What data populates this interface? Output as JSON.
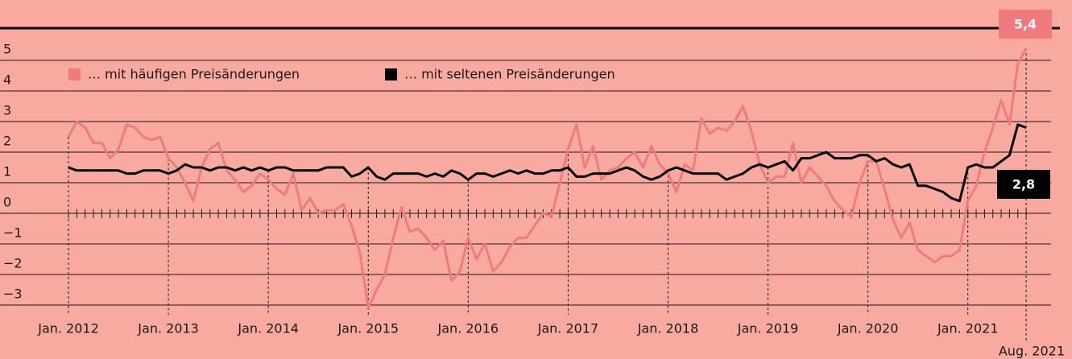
{
  "chart_data": {
    "type": "line",
    "x": [
      "2012-01",
      "2012-02",
      "2012-03",
      "2012-04",
      "2012-05",
      "2012-06",
      "2012-07",
      "2012-08",
      "2012-09",
      "2012-10",
      "2012-11",
      "2012-12",
      "2013-01",
      "2013-02",
      "2013-03",
      "2013-04",
      "2013-05",
      "2013-06",
      "2013-07",
      "2013-08",
      "2013-09",
      "2013-10",
      "2013-11",
      "2013-12",
      "2014-01",
      "2014-02",
      "2014-03",
      "2014-04",
      "2014-05",
      "2014-06",
      "2014-07",
      "2014-08",
      "2014-09",
      "2014-10",
      "2014-11",
      "2014-12",
      "2015-01",
      "2015-02",
      "2015-03",
      "2015-04",
      "2015-05",
      "2015-06",
      "2015-07",
      "2015-08",
      "2015-09",
      "2015-10",
      "2015-11",
      "2015-12",
      "2016-01",
      "2016-02",
      "2016-03",
      "2016-04",
      "2016-05",
      "2016-06",
      "2016-07",
      "2016-08",
      "2016-09",
      "2016-10",
      "2016-11",
      "2016-12",
      "2017-01",
      "2017-02",
      "2017-03",
      "2017-04",
      "2017-05",
      "2017-06",
      "2017-07",
      "2017-08",
      "2017-09",
      "2017-10",
      "2017-11",
      "2017-12",
      "2018-01",
      "2018-02",
      "2018-03",
      "2018-04",
      "2018-05",
      "2018-06",
      "2018-07",
      "2018-08",
      "2018-09",
      "2018-10",
      "2018-11",
      "2018-12",
      "2019-01",
      "2019-02",
      "2019-03",
      "2019-04",
      "2019-05",
      "2019-06",
      "2019-07",
      "2019-08",
      "2019-09",
      "2019-10",
      "2019-11",
      "2019-12",
      "2020-01",
      "2020-02",
      "2020-03",
      "2020-04",
      "2020-05",
      "2020-06",
      "2020-07",
      "2020-08",
      "2020-09",
      "2020-10",
      "2020-11",
      "2020-12",
      "2021-01",
      "2021-02",
      "2021-03",
      "2021-04",
      "2021-05",
      "2021-06",
      "2021-07",
      "2021-08"
    ],
    "series": [
      {
        "name": "… mit häufigen Preisänderungen",
        "color": "#f07b7f",
        "values": [
          2.5,
          3.0,
          2.8,
          2.3,
          2.3,
          1.8,
          2.1,
          2.9,
          2.8,
          2.5,
          2.4,
          2.5,
          1.8,
          1.5,
          1.0,
          0.4,
          1.5,
          2.1,
          2.3,
          1.4,
          1.1,
          0.7,
          0.9,
          1.3,
          1.1,
          0.8,
          0.6,
          1.3,
          0.1,
          0.5,
          0.0,
          0.1,
          0.1,
          0.3,
          -0.4,
          -1.3,
          -3.1,
          -2.5,
          -2.0,
          -0.8,
          0.2,
          -0.6,
          -0.5,
          -0.8,
          -1.2,
          -0.9,
          -2.2,
          -1.9,
          -0.8,
          -1.5,
          -1.0,
          -1.9,
          -1.6,
          -1.1,
          -0.8,
          -0.8,
          -0.4,
          0.0,
          -0.1,
          1.0,
          2.1,
          2.9,
          1.5,
          2.2,
          1.1,
          1.4,
          1.5,
          1.8,
          2.0,
          1.5,
          2.2,
          1.6,
          1.3,
          0.7,
          1.6,
          1.4,
          3.1,
          2.6,
          2.8,
          2.7,
          3.0,
          3.5,
          2.7,
          1.6,
          1.0,
          1.2,
          1.2,
          2.3,
          1.0,
          1.5,
          1.2,
          0.9,
          0.4,
          0.1,
          -0.1,
          1.0,
          1.7,
          1.7,
          0.8,
          -0.2,
          -0.8,
          -0.3,
          -1.2,
          -1.4,
          -1.6,
          -1.4,
          -1.4,
          -1.2,
          0.4,
          0.9,
          2.0,
          2.8,
          3.7,
          2.9,
          4.9,
          5.4
        ],
        "value_labels": [
          null,
          null,
          null,
          null,
          null,
          null,
          null,
          null,
          null,
          null,
          null,
          null,
          null,
          null,
          null,
          null,
          null,
          null,
          null,
          null,
          null,
          null,
          null,
          null,
          null,
          null,
          null,
          null,
          null,
          null,
          null,
          null,
          null,
          null,
          null,
          null,
          null,
          null,
          null,
          null,
          null,
          null,
          null,
          null,
          null,
          null,
          null,
          null,
          null,
          null,
          null,
          null,
          null,
          null,
          null,
          null,
          null,
          null,
          null,
          null,
          null,
          null,
          null,
          null,
          null,
          null,
          null,
          null,
          null,
          null,
          null,
          null,
          null,
          null,
          null,
          null,
          null,
          null,
          null,
          null,
          null,
          null,
          null,
          null,
          null,
          null,
          null,
          null,
          null,
          null,
          null,
          null,
          null,
          null,
          null,
          null,
          null,
          null,
          null,
          null,
          null,
          null,
          null,
          null,
          null,
          null,
          null,
          null,
          null,
          null,
          null,
          null,
          null,
          null,
          null,
          "5,4"
        ]
      },
      {
        "name": "… mit seltenen Preisänderungen",
        "color": "#000000",
        "values": [
          1.5,
          1.4,
          1.4,
          1.4,
          1.4,
          1.4,
          1.4,
          1.3,
          1.3,
          1.4,
          1.4,
          1.4,
          1.3,
          1.4,
          1.6,
          1.5,
          1.5,
          1.4,
          1.5,
          1.5,
          1.4,
          1.5,
          1.4,
          1.5,
          1.4,
          1.5,
          1.5,
          1.4,
          1.4,
          1.4,
          1.4,
          1.5,
          1.5,
          1.5,
          1.2,
          1.3,
          1.5,
          1.2,
          1.1,
          1.3,
          1.3,
          1.3,
          1.3,
          1.2,
          1.3,
          1.2,
          1.4,
          1.3,
          1.1,
          1.3,
          1.3,
          1.2,
          1.3,
          1.4,
          1.3,
          1.4,
          1.3,
          1.3,
          1.4,
          1.4,
          1.5,
          1.2,
          1.2,
          1.3,
          1.3,
          1.3,
          1.4,
          1.5,
          1.4,
          1.2,
          1.1,
          1.2,
          1.4,
          1.5,
          1.4,
          1.3,
          1.3,
          1.3,
          1.3,
          1.1,
          1.2,
          1.3,
          1.5,
          1.6,
          1.5,
          1.6,
          1.7,
          1.4,
          1.8,
          1.8,
          1.9,
          2.0,
          1.8,
          1.8,
          1.8,
          1.9,
          1.9,
          1.7,
          1.8,
          1.6,
          1.5,
          1.6,
          0.9,
          0.9,
          0.8,
          0.7,
          0.5,
          0.4,
          1.5,
          1.6,
          1.5,
          1.5,
          1.7,
          1.9,
          2.9,
          2.8
        ],
        "value_labels": [
          null,
          null,
          null,
          null,
          null,
          null,
          null,
          null,
          null,
          null,
          null,
          null,
          null,
          null,
          null,
          null,
          null,
          null,
          null,
          null,
          null,
          null,
          null,
          null,
          null,
          null,
          null,
          null,
          null,
          null,
          null,
          null,
          null,
          null,
          null,
          null,
          null,
          null,
          null,
          null,
          null,
          null,
          null,
          null,
          null,
          null,
          null,
          null,
          null,
          null,
          null,
          null,
          null,
          null,
          null,
          null,
          null,
          null,
          null,
          null,
          null,
          null,
          null,
          null,
          null,
          null,
          null,
          null,
          null,
          null,
          null,
          null,
          null,
          null,
          null,
          null,
          null,
          null,
          null,
          null,
          null,
          null,
          null,
          null,
          null,
          null,
          null,
          null,
          null,
          null,
          null,
          null,
          null,
          null,
          null,
          null,
          null,
          null,
          null,
          null,
          null,
          null,
          null,
          null,
          null,
          null,
          null,
          null,
          null,
          null,
          null,
          null,
          null,
          null,
          null,
          "2,8"
        ]
      }
    ],
    "ylim": [
      -3,
      6
    ],
    "yticks": [
      {
        "value": -3,
        "label": "−3"
      },
      {
        "value": -2,
        "label": "−2"
      },
      {
        "value": -1,
        "label": "−1"
      },
      0,
      1,
      2,
      3,
      4,
      5
    ],
    "xticks": [
      {
        "value": "2012-01",
        "label": "Jan. 2012"
      },
      {
        "value": "2013-01",
        "label": "Jan. 2013"
      },
      {
        "value": "2014-01",
        "label": "Jan. 2014"
      },
      {
        "value": "2015-01",
        "label": "Jan. 2015"
      },
      {
        "value": "2016-01",
        "label": "Jan. 2016"
      },
      {
        "value": "2017-01",
        "label": "Jan. 2017"
      },
      {
        "value": "2018-01",
        "label": "Jan. 2018"
      },
      {
        "value": "2019-01",
        "label": "Jan. 2019"
      },
      {
        "value": "2020-01",
        "label": "Jan. 2020"
      },
      {
        "value": "2021-01",
        "label": "Jan. 2021"
      },
      {
        "value": "2021-08",
        "label": "Aug. 2021"
      }
    ],
    "grid": true,
    "background": "#f9aaa0"
  }
}
